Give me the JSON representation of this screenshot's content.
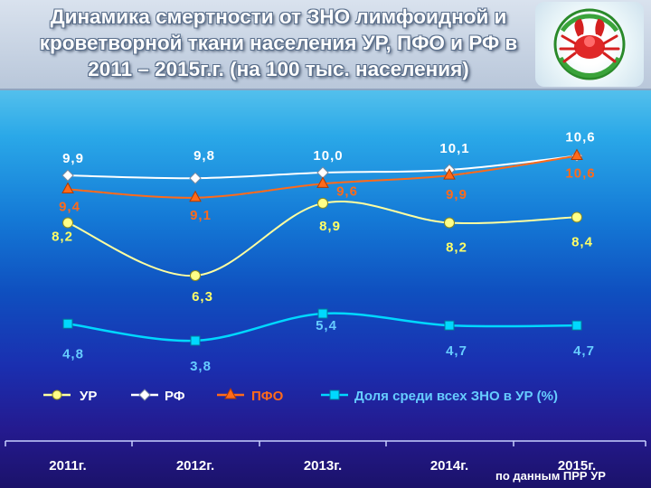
{
  "header": {
    "title": "Динамика смертности от ЗНО лимфоидной и кроветворной ткани населения УР, ПФО и РФ в 2011 – 2015г.г. (на 100 тыс. населения)"
  },
  "source": "по данным ПРР УР",
  "colors": {
    "ur": "#ffffa0",
    "rf": "#ffffff",
    "pfo": "#ff6a1a",
    "share": "#00d8ff",
    "ur_label": "#ffff66",
    "rf_label": "#ffffff",
    "pfo_label": "#ff6a1a",
    "share_label": "#66ccff"
  },
  "chart_data": {
    "type": "line",
    "categories": [
      "2011г.",
      "2012г.",
      "2013г.",
      "2014г.",
      "2015г."
    ],
    "series": [
      {
        "name": "УР",
        "key": "ur",
        "marker": "circle",
        "values": [
          8.2,
          6.3,
          8.9,
          8.2,
          8.4
        ],
        "labels": [
          "8,2",
          "6,3",
          "8,9",
          "8,2",
          "8,4"
        ]
      },
      {
        "name": "РФ",
        "key": "rf",
        "marker": "diamond",
        "values": [
          9.9,
          9.8,
          10.0,
          10.1,
          10.6
        ],
        "labels": [
          "9,9",
          "9,8",
          "10,0",
          "10,1",
          "10,6"
        ]
      },
      {
        "name": "ПФО",
        "key": "pfo",
        "marker": "triangle",
        "values": [
          9.4,
          9.1,
          9.6,
          9.9,
          10.6
        ],
        "labels": [
          "9,4",
          "9,1",
          "9,6",
          "9,9",
          "10,6"
        ]
      },
      {
        "name": "Доля среди всех ЗНО в УР (%)",
        "key": "share",
        "marker": "square",
        "values": [
          4.8,
          3.8,
          5.4,
          4.7,
          4.7
        ],
        "labels": [
          "4,8",
          "3,8",
          "5,4",
          "4,7",
          "4,7"
        ]
      }
    ],
    "legend": "bottom",
    "grid": false
  }
}
